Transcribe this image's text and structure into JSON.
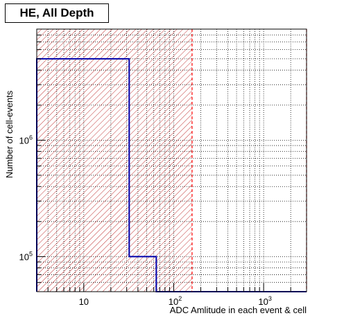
{
  "chart_data": {
    "type": "bar",
    "title": "HE, All Depth",
    "xlabel": "ADC Amlitude in each event & cell",
    "ylabel": "Number of cell-events",
    "x_scale": "log",
    "y_scale": "log",
    "xlim": [
      3,
      3000
    ],
    "ylim": [
      50000,
      9000000
    ],
    "x_major_ticks": [
      {
        "value": 10,
        "base": "10",
        "exp": ""
      },
      {
        "value": 100,
        "base": "10",
        "exp": "2"
      },
      {
        "value": 1000,
        "base": "10",
        "exp": "3"
      }
    ],
    "y_major_ticks": [
      {
        "value": 100000,
        "base": "10",
        "exp": "5"
      },
      {
        "value": 1000000,
        "base": "10",
        "exp": "6"
      }
    ],
    "grid": true,
    "series": [
      {
        "bins": [
          {
            "x0": 3,
            "x1": 32,
            "y": 5000000
          },
          {
            "x0": 32,
            "x1": 64,
            "y": 100000
          },
          {
            "x0": 64,
            "x1": 3000,
            "y": 50000
          }
        ],
        "color": "#0000aa"
      }
    ],
    "cut_lines": [
      {
        "x": 160,
        "color": "#ff0000"
      },
      {
        "x": 3000,
        "color": "#ff0000"
      }
    ],
    "hatched_region": {
      "x0": 3,
      "x1": 160,
      "color": "#b00000"
    }
  }
}
